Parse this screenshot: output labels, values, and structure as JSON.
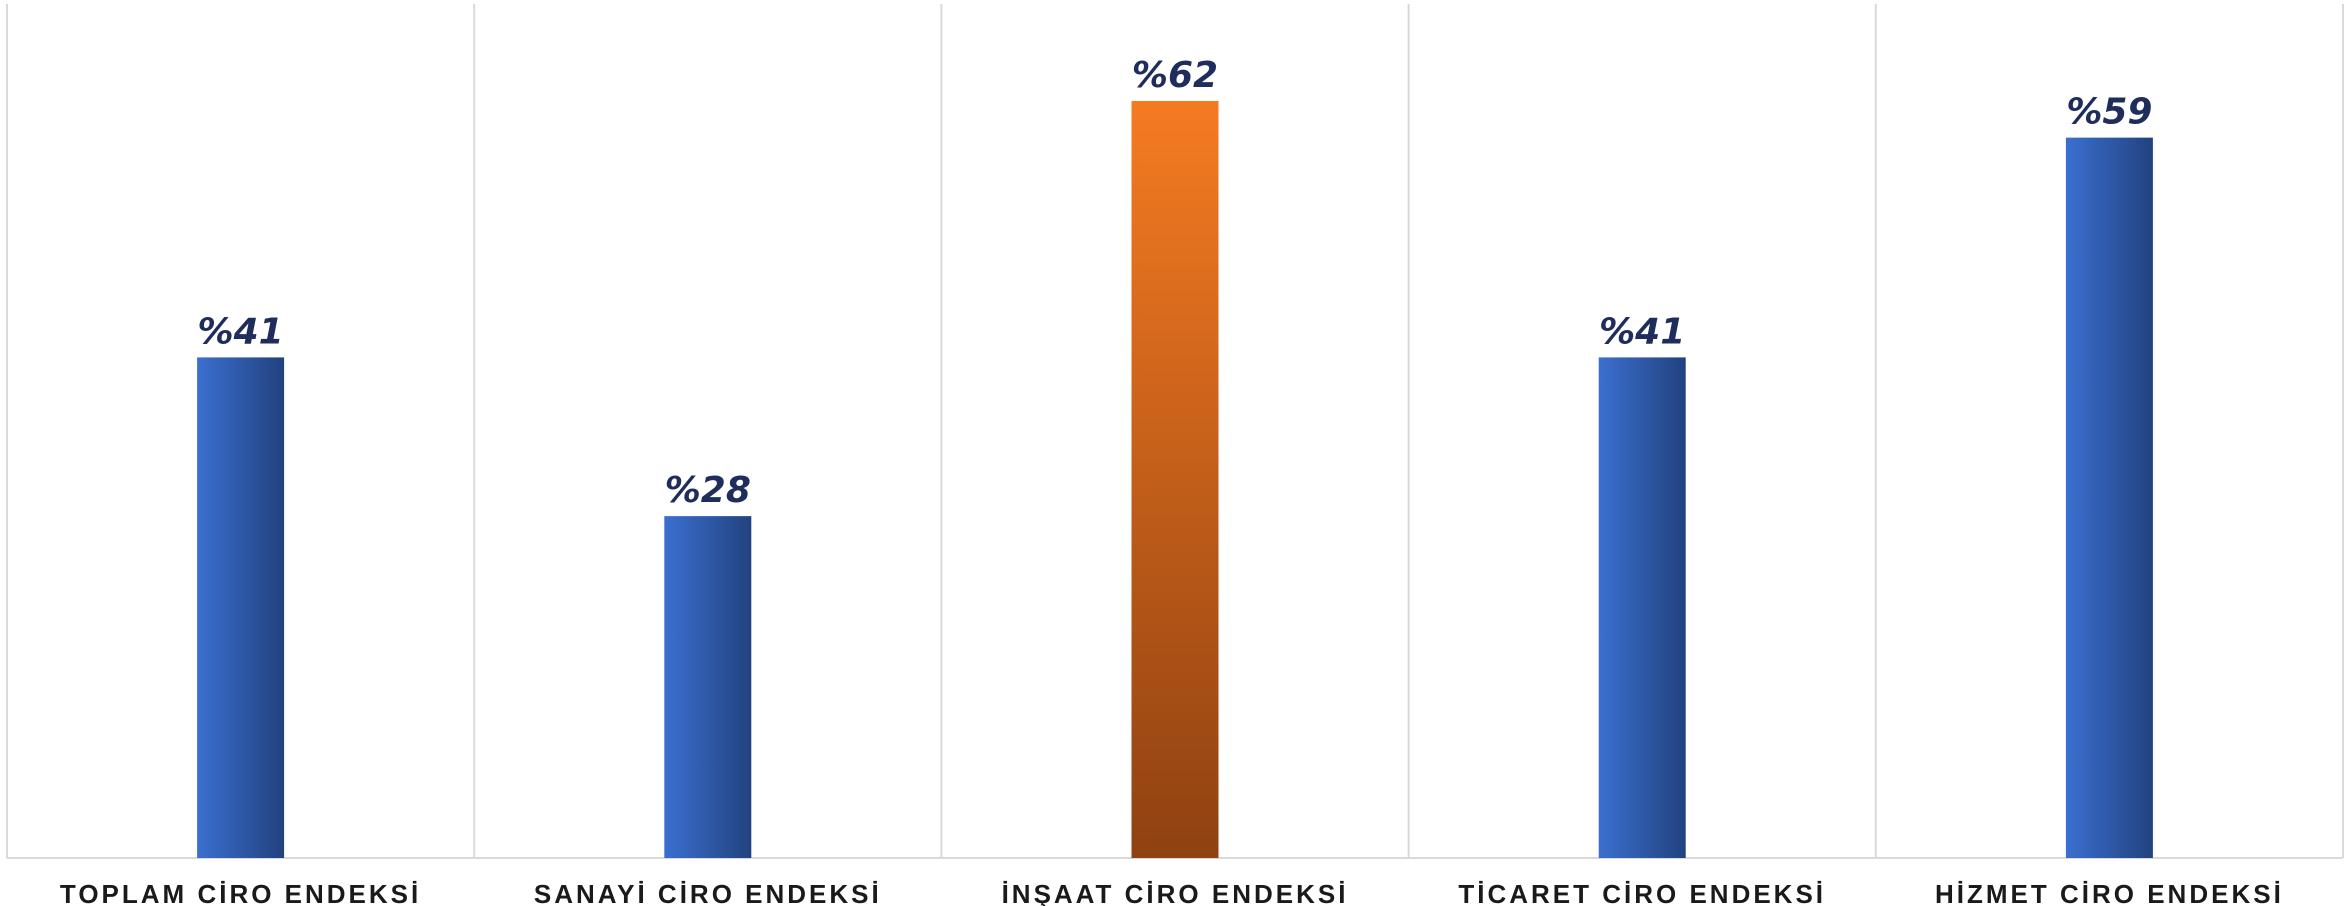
{
  "chart_data": {
    "type": "bar",
    "categories": [
      "TOPLAM CİRO ENDEKSİ",
      "SANAYİ CİRO ENDEKSİ",
      "İNŞAAT CİRO ENDEKSİ",
      "TİCARET CİRO ENDEKSİ",
      "HİZMET CİRO ENDEKSİ"
    ],
    "values": [
      41,
      28,
      62,
      41,
      59
    ],
    "value_labels": [
      "%41",
      "%28",
      "%62",
      "%41",
      "%59"
    ],
    "ylim": [
      0,
      70
    ],
    "grid": false,
    "highlight_index": 2,
    "colors": {
      "bar_light": "#3b6fd0",
      "bar_dark": "#22427f",
      "highlight_top": "#f57b22",
      "highlight_bottom": "#8f4111",
      "value_text": "#1f2d5c",
      "category_text": "#1a1a1a",
      "divider": "#d9d9d9"
    }
  }
}
